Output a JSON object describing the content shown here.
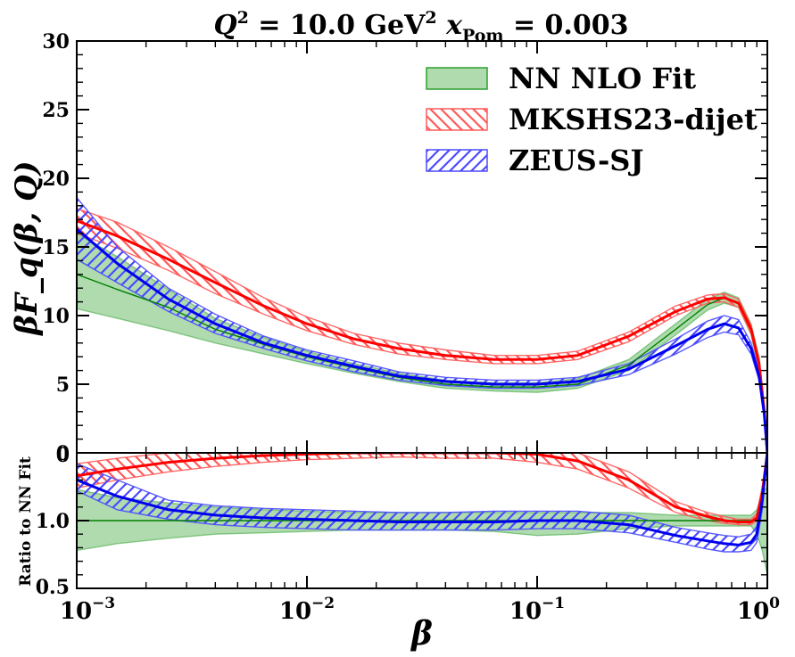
{
  "chart_data": {
    "type": "line",
    "title": "Q² = 10.0 GeV² x_Pom = 0.003",
    "title_parts": {
      "lhs1": "Q",
      "exp1": "2",
      "mid1": " = 10.0 GeV",
      "exp2": "2",
      "lhs2": " x",
      "sub2": "Pom",
      "rhs2": " = 0.003"
    },
    "xlabel": "β",
    "xscale": "log",
    "xlim": [
      0.001,
      1.0
    ],
    "x_ticks": [
      {
        "value": 0.001,
        "base": "10",
        "exp": "−3"
      },
      {
        "value": 0.01,
        "base": "10",
        "exp": "−2"
      },
      {
        "value": 0.1,
        "base": "10",
        "exp": "−1"
      },
      {
        "value": 1.0,
        "base": "10",
        "exp": "0"
      }
    ],
    "main": {
      "ylabel": "βF_q(β, Q)",
      "ylim": [
        0,
        30
      ],
      "y_ticks": [
        "0",
        "5",
        "10",
        "15",
        "20",
        "25",
        "30"
      ],
      "x": [
        0.001,
        0.0015,
        0.0025,
        0.004,
        0.0065,
        0.01,
        0.016,
        0.025,
        0.04,
        0.065,
        0.1,
        0.15,
        0.25,
        0.4,
        0.55,
        0.65,
        0.75,
        0.85,
        0.92,
        0.97,
        1.0
      ],
      "series": [
        {
          "name": "NN NLO Fit",
          "color": "#008000",
          "fill": "#2ca02c",
          "central": [
            13.0,
            11.9,
            10.6,
            9.0,
            7.9,
            7.0,
            6.2,
            5.5,
            5.0,
            4.8,
            4.8,
            5.0,
            6.4,
            9.0,
            10.8,
            11.3,
            10.9,
            9.0,
            6.5,
            3.0,
            0.0
          ],
          "lower": [
            10.5,
            9.8,
            8.9,
            8.0,
            7.2,
            6.5,
            5.8,
            5.2,
            4.7,
            4.5,
            4.4,
            4.7,
            6.0,
            8.6,
            10.4,
            10.9,
            10.6,
            8.6,
            6.0,
            2.5,
            0.0
          ],
          "upper": [
            16.0,
            14.3,
            11.9,
            9.8,
            8.4,
            7.4,
            6.5,
            5.8,
            5.3,
            5.1,
            5.1,
            5.4,
            6.8,
            9.4,
            11.2,
            11.7,
            11.3,
            9.4,
            7.0,
            3.5,
            0.0
          ]
        },
        {
          "name": "MKSHS23-dijet",
          "color": "#ff0000",
          "fill": "#ff0000",
          "central": [
            16.9,
            15.8,
            14.1,
            12.4,
            10.7,
            9.4,
            8.3,
            7.6,
            7.1,
            6.8,
            6.8,
            7.1,
            8.5,
            10.3,
            11.2,
            11.3,
            10.9,
            9.0,
            6.5,
            3.0,
            0.0
          ],
          "lower": [
            16.0,
            14.9,
            13.3,
            11.6,
            10.1,
            8.9,
            7.9,
            7.2,
            6.8,
            6.5,
            6.5,
            6.8,
            8.1,
            10.0,
            10.9,
            11.0,
            10.6,
            8.7,
            6.2,
            2.8,
            0.0
          ],
          "upper": [
            17.8,
            16.8,
            15.0,
            13.2,
            11.3,
            9.9,
            8.7,
            8.0,
            7.5,
            7.1,
            7.1,
            7.4,
            8.8,
            10.7,
            11.5,
            11.6,
            11.2,
            9.3,
            6.8,
            3.2,
            0.0
          ]
        },
        {
          "name": "ZEUS-SJ",
          "color": "#0000ee",
          "fill": "#0000ee",
          "central": [
            16.3,
            13.8,
            11.2,
            9.4,
            8.0,
            7.1,
            6.3,
            5.6,
            5.2,
            5.0,
            5.0,
            5.2,
            6.1,
            7.8,
            9.0,
            9.4,
            9.1,
            7.6,
            5.6,
            2.8,
            0.0
          ],
          "lower": [
            14.1,
            12.4,
            10.3,
            8.7,
            7.6,
            6.7,
            5.9,
            5.3,
            4.9,
            4.7,
            4.7,
            4.9,
            5.7,
            7.2,
            8.4,
            8.8,
            8.6,
            7.2,
            5.3,
            2.6,
            0.0
          ],
          "upper": [
            18.6,
            15.0,
            12.0,
            10.1,
            8.5,
            7.5,
            6.7,
            5.9,
            5.5,
            5.3,
            5.3,
            5.5,
            6.5,
            8.3,
            9.6,
            10.0,
            9.7,
            8.0,
            6.0,
            3.0,
            0.0
          ]
        }
      ]
    },
    "ratio": {
      "ylabel": "Ratio to NN Fit",
      "ylim": [
        0.5,
        1.5
      ],
      "y_ticks": [
        "0.5",
        "1.0",
        "0"
      ],
      "x": [
        0.001,
        0.0015,
        0.0025,
        0.004,
        0.0065,
        0.01,
        0.016,
        0.025,
        0.04,
        0.065,
        0.1,
        0.15,
        0.25,
        0.4,
        0.55,
        0.65,
        0.75,
        0.85,
        0.9,
        0.95,
        1.0
      ],
      "series": [
        {
          "name": "NN NLO Fit",
          "color": "#008000",
          "fill": "#2ca02c",
          "central": [
            1.0,
            1.0,
            1.0,
            1.0,
            1.0,
            1.0,
            1.0,
            1.0,
            1.0,
            1.0,
            1.0,
            1.0,
            1.0,
            1.0,
            1.0,
            1.0,
            1.0,
            1.0,
            1.0,
            1.0,
            1.0
          ],
          "lower": [
            0.78,
            0.83,
            0.87,
            0.9,
            0.91,
            0.92,
            0.93,
            0.93,
            0.93,
            0.92,
            0.89,
            0.9,
            0.94,
            0.96,
            0.96,
            0.96,
            0.96,
            0.96,
            0.9,
            0.78,
            0.6
          ],
          "upper": [
            1.23,
            1.17,
            1.13,
            1.1,
            1.08,
            1.07,
            1.06,
            1.06,
            1.06,
            1.06,
            1.06,
            1.06,
            1.06,
            1.04,
            1.04,
            1.04,
            1.04,
            1.04,
            1.08,
            1.2,
            1.25
          ]
        },
        {
          "name": "MKSHS23-dijet",
          "color": "#ff0000",
          "fill": "#ff0000",
          "central": [
            1.33,
            1.38,
            1.43,
            1.46,
            1.48,
            1.49,
            1.5,
            1.5,
            1.5,
            1.5,
            1.49,
            1.44,
            1.3,
            1.1,
            1.03,
            1.0,
            0.99,
            0.99,
            1.02,
            1.2,
            1.5
          ],
          "lower": [
            1.24,
            1.3,
            1.36,
            1.4,
            1.43,
            1.45,
            1.46,
            1.47,
            1.46,
            1.46,
            1.43,
            1.38,
            1.24,
            1.06,
            1.0,
            0.98,
            0.97,
            0.97,
            1.0,
            1.15,
            1.48
          ],
          "upper": [
            1.42,
            1.46,
            1.5,
            1.52,
            1.54,
            1.54,
            1.54,
            1.54,
            1.54,
            1.54,
            1.54,
            1.5,
            1.36,
            1.14,
            1.06,
            1.03,
            1.01,
            1.01,
            1.05,
            1.25,
            1.52
          ]
        },
        {
          "name": "ZEUS-SJ",
          "color": "#0000ee",
          "fill": "#0000ee",
          "central": [
            1.3,
            1.18,
            1.08,
            1.04,
            1.02,
            1.01,
            1.0,
            0.99,
            0.99,
            0.99,
            1.0,
            1.0,
            0.97,
            0.89,
            0.85,
            0.83,
            0.82,
            0.84,
            0.9,
            1.15,
            1.5
          ],
          "lower": [
            1.22,
            1.08,
            1.01,
            0.97,
            0.95,
            0.94,
            0.93,
            0.93,
            0.93,
            0.93,
            0.94,
            0.94,
            0.91,
            0.84,
            0.79,
            0.77,
            0.77,
            0.78,
            0.84,
            1.08,
            1.47
          ],
          "upper": [
            1.42,
            1.3,
            1.15,
            1.11,
            1.09,
            1.08,
            1.07,
            1.06,
            1.06,
            1.07,
            1.07,
            1.07,
            1.04,
            0.95,
            0.91,
            0.89,
            0.88,
            0.9,
            0.96,
            1.22,
            1.52
          ]
        }
      ]
    },
    "legend": {
      "placement": "top-right",
      "entries": [
        {
          "label": "NN NLO Fit",
          "style": "solid-fill",
          "color": "#2ca02c"
        },
        {
          "label": "MKSHS23-dijet",
          "style": "hatch-backslash",
          "color": "#ff0000"
        },
        {
          "label": "ZEUS-SJ",
          "style": "hatch-slash",
          "color": "#0000ee"
        }
      ]
    }
  }
}
